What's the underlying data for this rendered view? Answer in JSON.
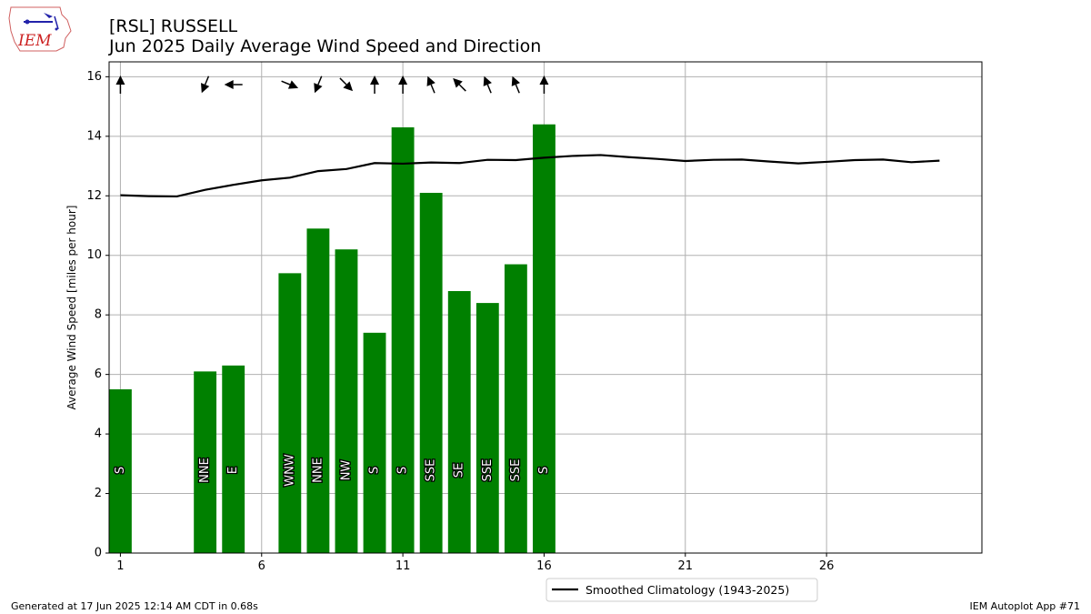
{
  "header": {
    "title_line1": "[RSL] RUSSELL",
    "title_line2": "Jun 2025 Daily Average Wind Speed and Direction"
  },
  "logo": {
    "text": "IEM"
  },
  "footer": {
    "generated": "Generated at 17 Jun 2025 12:14 AM CDT in 0.68s",
    "app": "IEM Autoplot App #71"
  },
  "colors": {
    "bar": "#008000",
    "line": "#000000",
    "grid": "#b0b0b0",
    "logo_text": "#cc2222"
  },
  "chart_data": {
    "type": "bar",
    "xlim": [
      0.6,
      31.5
    ],
    "ylim": [
      0,
      16.5
    ],
    "xticks": [
      1,
      6,
      11,
      16,
      21,
      26
    ],
    "yticks": [
      0,
      2,
      4,
      6,
      8,
      10,
      12,
      14,
      16
    ],
    "xlabel": "",
    "ylabel": "Average Wind Speed [miles per hour]",
    "grid": true,
    "bars": [
      {
        "day": 1,
        "speed": 5.5,
        "dir": "S",
        "deg": 180
      },
      {
        "day": 4,
        "speed": 6.1,
        "dir": "NNE",
        "deg": 22.5
      },
      {
        "day": 5,
        "speed": 6.3,
        "dir": "E",
        "deg": 90
      },
      {
        "day": 7,
        "speed": 9.4,
        "dir": "WNW",
        "deg": 292.5
      },
      {
        "day": 8,
        "speed": 10.9,
        "dir": "NNE",
        "deg": 22.5
      },
      {
        "day": 9,
        "speed": 10.2,
        "dir": "NW",
        "deg": 315
      },
      {
        "day": 10,
        "speed": 7.4,
        "dir": "S",
        "deg": 180
      },
      {
        "day": 11,
        "speed": 14.3,
        "dir": "S",
        "deg": 180
      },
      {
        "day": 12,
        "speed": 12.1,
        "dir": "SSE",
        "deg": 157.5
      },
      {
        "day": 13,
        "speed": 8.8,
        "dir": "SE",
        "deg": 135
      },
      {
        "day": 14,
        "speed": 8.4,
        "dir": "SSE",
        "deg": 157.5
      },
      {
        "day": 15,
        "speed": 9.7,
        "dir": "SSE",
        "deg": 157.5
      },
      {
        "day": 16,
        "speed": 14.4,
        "dir": "S",
        "deg": 180
      }
    ],
    "climatology": {
      "name": "Smoothed Climatology (1943-2025)",
      "x": [
        1,
        2,
        3,
        4,
        5,
        6,
        7,
        8,
        9,
        10,
        11,
        12,
        13,
        14,
        15,
        16,
        17,
        18,
        19,
        20,
        21,
        22,
        23,
        24,
        25,
        26,
        27,
        28,
        29,
        30
      ],
      "y": [
        12.02,
        11.99,
        11.98,
        12.2,
        12.37,
        12.52,
        12.61,
        12.83,
        12.9,
        13.1,
        13.08,
        13.12,
        13.1,
        13.21,
        13.2,
        13.28,
        13.34,
        13.37,
        13.3,
        13.24,
        13.17,
        13.21,
        13.22,
        13.15,
        13.09,
        13.14,
        13.2,
        13.22,
        13.13,
        13.18
      ]
    },
    "legend": {
      "placement": "below-center"
    }
  }
}
